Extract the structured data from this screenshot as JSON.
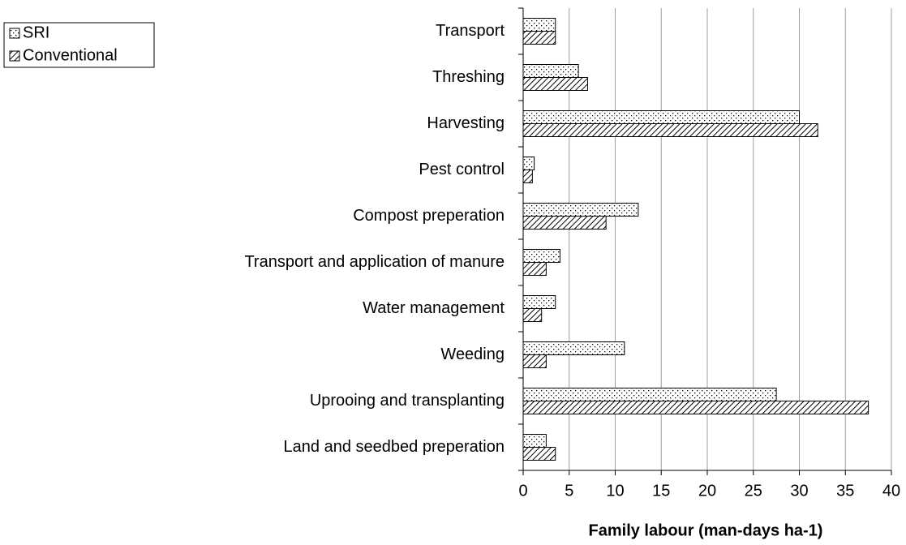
{
  "chart_data": {
    "type": "hbar",
    "xlabel": "Family labour (man-days ha-1)",
    "categories": [
      "Transport",
      "Threshing",
      "Harvesting",
      "Pest control",
      "Compost preperation",
      "Transport and application of manure",
      "Water management",
      "Weeding",
      "Uprooing and transplanting",
      "Land and seedbed preperation"
    ],
    "series": [
      {
        "name": "SRI",
        "color": "#000000",
        "pattern": "dots",
        "values": [
          3.5,
          6,
          30,
          1.2,
          12.5,
          4,
          3.5,
          11,
          27.5,
          2.5
        ]
      },
      {
        "name": "Conventional",
        "color": "#000000",
        "pattern": "hatch",
        "values": [
          3.5,
          7,
          32,
          1,
          9,
          2.5,
          2,
          2.5,
          37.5,
          3.5
        ]
      }
    ],
    "xlim": [
      0,
      40
    ],
    "xticks": [
      0,
      5,
      10,
      15,
      20,
      25,
      30,
      35,
      40
    ],
    "grid": true,
    "legend": "top-left"
  }
}
